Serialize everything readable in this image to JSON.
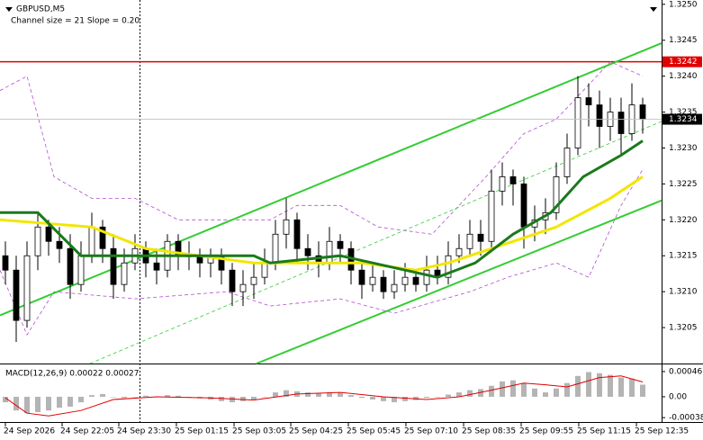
{
  "chart_data": [
    {
      "type": "candlestick",
      "title": "GBPUSD,M5",
      "subtitle": "Channel size = 21 Slope = 0.20",
      "xlim": [
        -0.5,
        60.75
      ],
      "ylim": [
        1.32,
        1.32506
      ],
      "yticks": [
        {
          "value": 1.325,
          "label": "1.3250"
        },
        {
          "value": 1.3245,
          "label": "1.3245"
        },
        {
          "value": 1.324,
          "label": "1.3240"
        },
        {
          "value": 1.3235,
          "label": "1.3235"
        },
        {
          "value": 1.323,
          "label": "1.3230"
        },
        {
          "value": 1.3225,
          "label": "1.3225"
        },
        {
          "value": 1.322,
          "label": "1.3220"
        },
        {
          "value": 1.3215,
          "label": "1.3215"
        },
        {
          "value": 1.321,
          "label": "1.3210"
        },
        {
          "value": 1.3205,
          "label": "1.3205"
        }
      ],
      "xticks": [
        {
          "value": 0,
          "label": "24 Sep 2026"
        },
        {
          "value": 5.25,
          "label": "24 Sep 22:05"
        },
        {
          "value": 10.5,
          "label": "24 Sep 23:30"
        },
        {
          "value": 15.83,
          "label": "25 Sep 01:15"
        },
        {
          "value": 21.17,
          "label": "25 Sep 03:05"
        },
        {
          "value": 26.42,
          "label": "25 Sep 04:25"
        },
        {
          "value": 31.75,
          "label": "25 Sep 05:45"
        },
        {
          "value": 37.08,
          "label": "25 Sep 07:10"
        },
        {
          "value": 42.42,
          "label": "25 Sep 08:35"
        },
        {
          "value": 47.75,
          "label": "25 Sep 09:55"
        },
        {
          "value": 53.08,
          "label": "25 Sep 11:15"
        },
        {
          "value": 58.42,
          "label": "25 Sep 12:35"
        }
      ],
      "up_color": "#ffffff",
      "down_color": "#000000",
      "candles": [
        [
          1.3215,
          1.3217,
          1.3211,
          1.3213
        ],
        [
          1.3213,
          1.3215,
          1.3203,
          1.3206
        ],
        [
          1.3206,
          1.3217,
          1.3205,
          1.3215
        ],
        [
          1.3215,
          1.3221,
          1.3213,
          1.3219
        ],
        [
          1.3219,
          1.322,
          1.3215,
          1.3217
        ],
        [
          1.3217,
          1.3219,
          1.3214,
          1.3216
        ],
        [
          1.3216,
          1.3218,
          1.3209,
          1.3211
        ],
        [
          1.3211,
          1.3217,
          1.321,
          1.3215
        ],
        [
          1.3215,
          1.3221,
          1.3214,
          1.3219
        ],
        [
          1.3219,
          1.322,
          1.3214,
          1.3216
        ],
        [
          1.3216,
          1.3218,
          1.3209,
          1.3211
        ],
        [
          1.3211,
          1.3216,
          1.321,
          1.3214
        ],
        [
          1.3214,
          1.3218,
          1.3213,
          1.3216
        ],
        [
          1.3216,
          1.3217,
          1.3212,
          1.3214
        ],
        [
          1.3214,
          1.3216,
          1.3211,
          1.3213
        ],
        [
          1.3213,
          1.3218,
          1.3212,
          1.3217
        ],
        [
          1.3217,
          1.3218,
          1.3213,
          1.3215
        ],
        [
          1.3215,
          1.3217,
          1.3213,
          1.3215
        ],
        [
          1.3215,
          1.3216,
          1.3212,
          1.3214
        ],
        [
          1.3214,
          1.3216,
          1.3212,
          1.3215
        ],
        [
          1.3215,
          1.3216,
          1.3211,
          1.3213
        ],
        [
          1.3213,
          1.3214,
          1.3208,
          1.321
        ],
        [
          1.321,
          1.3213,
          1.3208,
          1.3211
        ],
        [
          1.3211,
          1.3214,
          1.3209,
          1.3212
        ],
        [
          1.3212,
          1.3216,
          1.3211,
          1.3214
        ],
        [
          1.3214,
          1.322,
          1.3213,
          1.3218
        ],
        [
          1.3218,
          1.3223,
          1.3216,
          1.322
        ],
        [
          1.322,
          1.3221,
          1.3214,
          1.3216
        ],
        [
          1.3216,
          1.3218,
          1.3213,
          1.3215
        ],
        [
          1.3215,
          1.3217,
          1.3212,
          1.3214
        ],
        [
          1.3214,
          1.3219,
          1.3213,
          1.3217
        ],
        [
          1.3217,
          1.3218,
          1.3214,
          1.3216
        ],
        [
          1.3216,
          1.3217,
          1.3211,
          1.3213
        ],
        [
          1.3213,
          1.3214,
          1.3209,
          1.3211
        ],
        [
          1.3211,
          1.3214,
          1.321,
          1.3212
        ],
        [
          1.3212,
          1.3213,
          1.3209,
          1.321
        ],
        [
          1.321,
          1.3213,
          1.3209,
          1.3211
        ],
        [
          1.3211,
          1.3214,
          1.321,
          1.3212
        ],
        [
          1.3212,
          1.3213,
          1.321,
          1.3211
        ],
        [
          1.3211,
          1.3215,
          1.321,
          1.3213
        ],
        [
          1.3213,
          1.3215,
          1.3211,
          1.3212
        ],
        [
          1.3212,
          1.3217,
          1.3211,
          1.3215
        ],
        [
          1.3215,
          1.3218,
          1.3214,
          1.3216
        ],
        [
          1.3216,
          1.322,
          1.3215,
          1.3218
        ],
        [
          1.3218,
          1.322,
          1.3215,
          1.3217
        ],
        [
          1.3217,
          1.3227,
          1.3216,
          1.3224
        ],
        [
          1.3224,
          1.3228,
          1.3222,
          1.3226
        ],
        [
          1.3226,
          1.3227,
          1.3222,
          1.3225
        ],
        [
          1.3225,
          1.3226,
          1.3216,
          1.3219
        ],
        [
          1.3219,
          1.3222,
          1.3217,
          1.322
        ],
        [
          1.322,
          1.3223,
          1.3218,
          1.3221
        ],
        [
          1.3221,
          1.3228,
          1.322,
          1.3226
        ],
        [
          1.3226,
          1.3232,
          1.3225,
          1.323
        ],
        [
          1.323,
          1.324,
          1.3229,
          1.3237
        ],
        [
          1.3237,
          1.3239,
          1.3233,
          1.3236
        ],
        [
          1.3236,
          1.3238,
          1.323,
          1.3233
        ],
        [
          1.3233,
          1.3237,
          1.3231,
          1.3235
        ],
        [
          1.3235,
          1.3237,
          1.3229,
          1.3232
        ],
        [
          1.3232,
          1.3239,
          1.3231,
          1.3236
        ],
        [
          1.3236,
          1.3237,
          1.3232,
          1.3234
        ]
      ],
      "lines": [
        {
          "color": "#b04fd0",
          "style": "dashed",
          "width": 0.8,
          "x": [
            -0.5,
            2,
            4.5,
            8,
            12,
            16,
            24.5,
            27,
            31,
            34.5,
            39.5,
            44.5,
            48,
            51,
            56,
            59
          ],
          "values": [
            1.3238,
            1.324,
            1.3226,
            1.3223,
            1.3223,
            1.322,
            1.322,
            1.3222,
            1.3222,
            1.3219,
            1.3218,
            1.3226,
            1.3232,
            1.3234,
            1.3242,
            1.324
          ]
        },
        {
          "color": "#b04fd0",
          "style": "dashed",
          "width": 0.8,
          "x": [
            -0.5,
            2,
            4.5,
            12,
            20.5,
            24.5,
            31,
            36,
            43,
            46.5,
            51,
            54,
            57,
            59
          ],
          "values": [
            1.3213,
            1.3204,
            1.321,
            1.3209,
            1.321,
            1.3208,
            1.3209,
            1.3207,
            1.321,
            1.3212,
            1.3214,
            1.3212,
            1.3222,
            1.3227
          ]
        },
        {
          "color": "#33cc33",
          "style": "dashed",
          "width": 0.8,
          "x": [
            7.83,
            60.75
          ],
          "values": [
            1.32,
            1.32337
          ]
        },
        {
          "color": "#33cc33",
          "style": "solid",
          "width": 2,
          "x": [
            -0.5,
            60.75
          ],
          "values": [
            1.32067,
            1.32446
          ]
        },
        {
          "color": "#33cc33",
          "style": "solid",
          "width": 2,
          "x": [
            23.25,
            60.75
          ],
          "values": [
            1.32,
            1.32227
          ]
        },
        {
          "color": "#f2e600",
          "style": "solid",
          "width": 3,
          "x": [
            -0.5,
            8,
            13,
            23,
            33,
            38,
            41,
            47,
            51,
            56,
            59
          ],
          "values": [
            1.322,
            1.3219,
            1.3216,
            1.3214,
            1.3214,
            1.3213,
            1.3214,
            1.3217,
            1.3219,
            1.3223,
            1.3226
          ]
        },
        {
          "color": "#1a7a1a",
          "style": "solid",
          "width": 3,
          "x": [
            -0.5,
            3,
            7,
            23,
            24.5,
            31,
            37,
            40,
            43.5,
            47,
            50.5,
            53.5,
            57,
            59
          ],
          "values": [
            1.3221,
            1.3221,
            1.3215,
            1.3215,
            1.3214,
            1.3215,
            1.3213,
            1.3212,
            1.3214,
            1.3218,
            1.3221,
            1.3226,
            1.3229,
            1.3231
          ]
        }
      ],
      "hline": {
        "value": 1.3242,
        "color": "#e00000"
      },
      "last_price": 1.3234
    },
    {
      "type": "macd",
      "title": "MACD(12,26,9) 0.00022 0.00027",
      "xlim": [
        -0.5,
        60.75
      ],
      "ylim": [
        -0.00046,
        0.00059
      ],
      "yticks": [
        0.00046,
        {
          "value": 0,
          "label": "0.00"
        },
        -0.00038
      ],
      "histogram": {
        "color": "#b4b4b4",
        "values": [
          -0.0001,
          -0.00025,
          -0.0003,
          -0.00028,
          -0.00025,
          -0.0002,
          -0.00018,
          -0.0001,
          3e-05,
          5e-05,
          0,
          -2e-05,
          0,
          2e-05,
          0,
          3e-05,
          2e-05,
          0,
          -3e-05,
          -5e-05,
          -8e-05,
          -0.0001,
          -8e-05,
          -5e-05,
          0,
          8e-05,
          0.00012,
          0.0001,
          8e-05,
          6e-05,
          8e-05,
          7e-05,
          3e-05,
          -2e-05,
          -5e-05,
          -8e-05,
          -0.0001,
          -8e-05,
          -6e-05,
          -2e-05,
          0,
          4e-05,
          8e-05,
          0.00012,
          0.00014,
          0.0002,
          0.00028,
          0.0003,
          0.00025,
          0.00015,
          8e-05,
          0.00015,
          0.00025,
          0.00038,
          0.00045,
          0.00043,
          0.0004,
          0.00035,
          0.00033,
          0.00022
        ]
      },
      "signal": {
        "color": "#e00000",
        "x": [
          0,
          2,
          4,
          7,
          10,
          14,
          19,
          23,
          27,
          31,
          35,
          39,
          42,
          45,
          48,
          50,
          52,
          55,
          57,
          59
        ],
        "values": [
          -2e-05,
          -0.0003,
          -0.00035,
          -0.00025,
          -5e-05,
          0,
          -2e-05,
          -6e-05,
          5e-05,
          8e-05,
          0,
          -5e-05,
          0,
          0.00012,
          0.00025,
          0.00022,
          0.00018,
          0.00035,
          0.00038,
          0.00027
        ]
      }
    }
  ]
}
